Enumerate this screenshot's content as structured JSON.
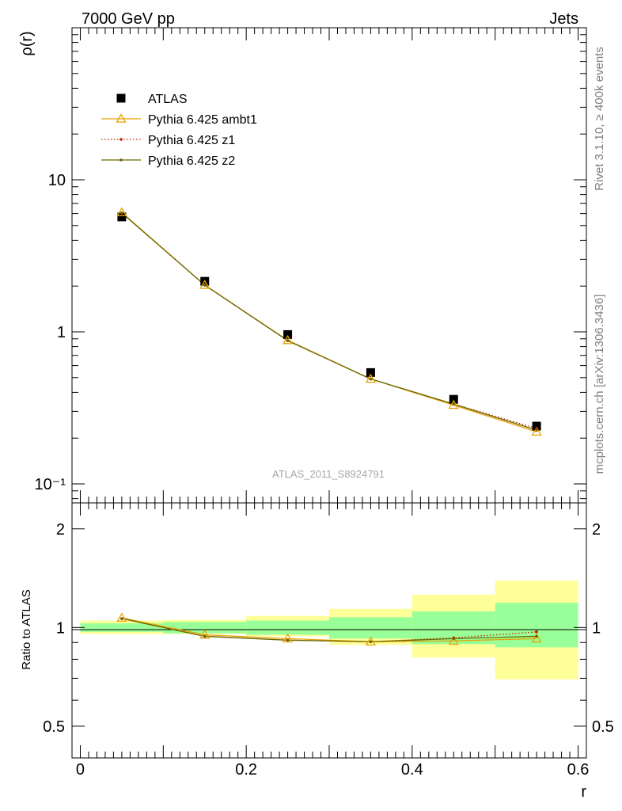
{
  "header": {
    "left": "7000 GeV pp",
    "right": "Jets"
  },
  "side_labels": {
    "rivet": "Rivet 3.1.10, ≥ 400k events",
    "mcplots": "mcplots.cern.ch [arXiv:1306.3436]"
  },
  "chart_data": [
    {
      "type": "scatter",
      "panel": "main",
      "ylabel": "ρ(r)",
      "yscale": "log",
      "ylim": [
        0.075,
        100
      ],
      "xlim": [
        -0.01,
        0.61
      ],
      "watermark": "ATLAS_2011_S8924791",
      "yticklabels": [
        "10⁻¹",
        "1",
        "10"
      ],
      "legend_position": "top-left",
      "x": [
        0.05,
        0.15,
        0.25,
        0.35,
        0.45,
        0.55
      ],
      "series": [
        {
          "name": "ATLAS",
          "color": "#000000",
          "marker": "square",
          "values": [
            5.7,
            2.15,
            0.96,
            0.54,
            0.36,
            0.24
          ]
        },
        {
          "name": "Pythia 6.425 ambt1",
          "color": "#e8a100",
          "marker": "triangle",
          "line": "solid",
          "values": [
            6.1,
            2.03,
            0.88,
            0.49,
            0.33,
            0.22
          ]
        },
        {
          "name": "Pythia 6.425 z1",
          "color": "#cc1a00",
          "marker": "dot",
          "line": "dotted",
          "values": [
            6.05,
            2.03,
            0.875,
            0.49,
            0.335,
            0.232
          ]
        },
        {
          "name": "Pythia 6.425 z2",
          "color": "#6b6b00",
          "marker": "dot",
          "line": "solid",
          "values": [
            6.05,
            2.03,
            0.875,
            0.49,
            0.335,
            0.226
          ]
        }
      ]
    },
    {
      "type": "line",
      "panel": "ratio",
      "ylabel": "Ratio to ATLAS",
      "xlabel": "r",
      "ylim": [
        0.4,
        2.4
      ],
      "xlim": [
        -0.01,
        0.61
      ],
      "yticklabels": [
        "0.5",
        "1",
        "2"
      ],
      "xticklabels": [
        "0",
        "0.2",
        "0.4",
        "0.6"
      ],
      "bins": [
        [
          0.0,
          0.1
        ],
        [
          0.1,
          0.2
        ],
        [
          0.2,
          0.3
        ],
        [
          0.3,
          0.4
        ],
        [
          0.4,
          0.5
        ],
        [
          0.5,
          0.6
        ]
      ],
      "band_colors": {
        "inner": "#99ff99",
        "outer": "#ffff99"
      },
      "bands_inner": [
        [
          0.97,
          1.03
        ],
        [
          0.96,
          1.04
        ],
        [
          0.95,
          1.05
        ],
        [
          0.925,
          1.075
        ],
        [
          0.89,
          1.12
        ],
        [
          0.87,
          1.19
        ]
      ],
      "bands_outer": [
        [
          0.955,
          1.05
        ],
        [
          0.955,
          1.055
        ],
        [
          0.94,
          1.085
        ],
        [
          0.885,
          1.14
        ],
        [
          0.81,
          1.26
        ],
        [
          0.695,
          1.39
        ]
      ],
      "x": [
        0.05,
        0.15,
        0.25,
        0.35,
        0.45,
        0.55
      ],
      "series": [
        {
          "name": "Pythia 6.425 ambt1",
          "color": "#e8a100",
          "marker": "triangle",
          "line": "solid",
          "values": [
            1.07,
            0.95,
            0.925,
            0.905,
            0.91,
            0.925
          ]
        },
        {
          "name": "Pythia 6.425 z1",
          "color": "#cc1a00",
          "marker": "dot",
          "line": "dotted",
          "values": [
            1.065,
            0.94,
            0.915,
            0.905,
            0.93,
            0.97
          ]
        },
        {
          "name": "Pythia 6.425 z2",
          "color": "#6b6b00",
          "marker": "dot",
          "line": "solid",
          "values": [
            1.065,
            0.94,
            0.915,
            0.905,
            0.925,
            0.94
          ]
        }
      ]
    }
  ]
}
